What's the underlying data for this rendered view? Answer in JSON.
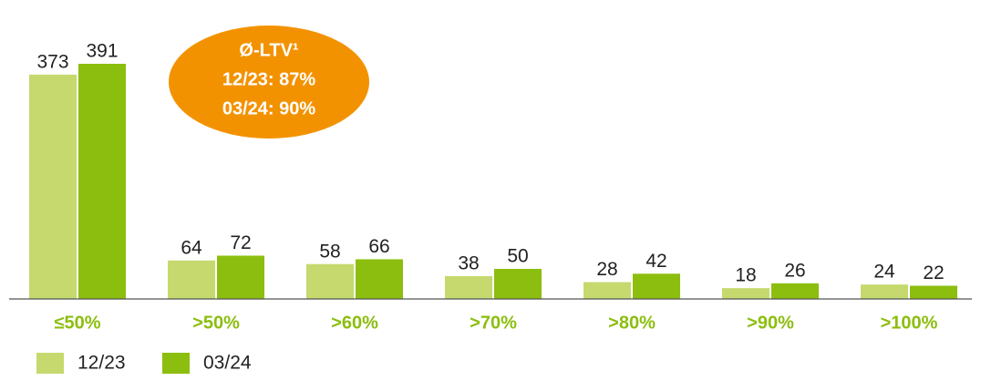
{
  "chart_data": {
    "type": "bar",
    "categories": [
      "≤50%",
      ">50%",
      ">60%",
      ">70%",
      ">80%",
      ">90%",
      ">100%"
    ],
    "series": [
      {
        "name": "12/23",
        "color": "#c5d96e",
        "values": [
          373,
          64,
          58,
          38,
          28,
          18,
          24
        ]
      },
      {
        "name": "03/24",
        "color": "#8cbe0f",
        "values": [
          391,
          72,
          66,
          50,
          42,
          26,
          22
        ]
      }
    ],
    "annotation": {
      "color": "#f39200",
      "lines": [
        "Ø-LTV¹",
        "12/23: 87%",
        "03/24: 90%"
      ]
    }
  }
}
